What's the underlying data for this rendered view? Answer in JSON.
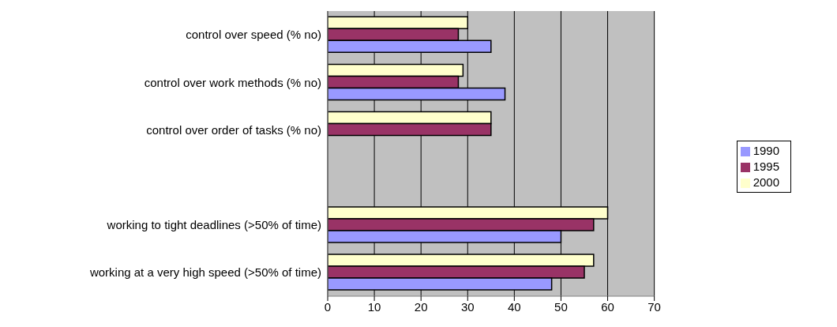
{
  "chart_data": {
    "type": "bar",
    "orientation": "horizontal",
    "categories": [
      "control over speed (% no)",
      "control over work methods (% no)",
      "control over order of tasks (% no)",
      null,
      "working to tight deadlines (>50% of time)",
      "working at a very high speed (>50% of time)"
    ],
    "series": [
      {
        "name": "2000",
        "color": "#ffffcc",
        "values": [
          30,
          29,
          35,
          null,
          60,
          57
        ]
      },
      {
        "name": "1995",
        "color": "#993366",
        "values": [
          28,
          28,
          35,
          null,
          57,
          55
        ]
      },
      {
        "name": "1990",
        "color": "#9999ff",
        "values": [
          35,
          38,
          null,
          null,
          50,
          48
        ]
      }
    ],
    "xlim": [
      0,
      70
    ],
    "xticks": [
      0,
      10,
      20,
      30,
      40,
      50,
      60,
      70
    ],
    "grid": "x",
    "legend": "right"
  }
}
